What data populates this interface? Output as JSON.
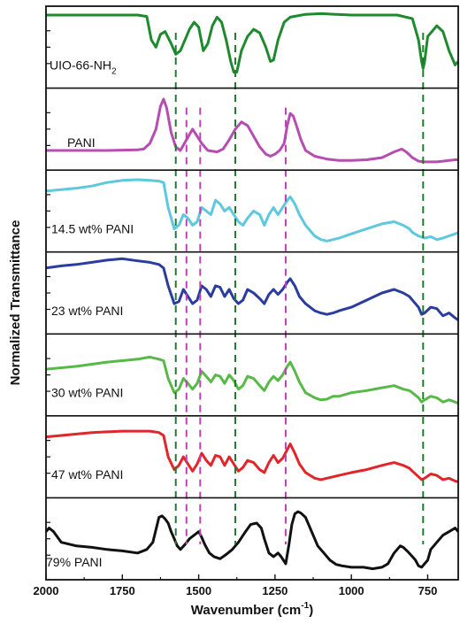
{
  "chart_data": {
    "type": "line",
    "xlabel": "Wavenumber (cm",
    "xlabel_sup": "-1",
    "xlabel_close": ")",
    "ylabel": "Normalized Transmittance",
    "xlim": [
      2000,
      650
    ],
    "x_reversed": true,
    "x_ticks": [
      2000,
      1750,
      1500,
      1250,
      1000,
      750
    ],
    "x_tick_labels": [
      "2000",
      "1750",
      "1500",
      "1250",
      "1000",
      "750"
    ],
    "grid": false,
    "reference_lines": [
      {
        "x": 1575,
        "color": "#1e7d2a",
        "style": "dashed"
      },
      {
        "x": 1380,
        "color": "#1e7d2a",
        "style": "dashed"
      },
      {
        "x": 765,
        "color": "#1e7d2a",
        "style": "dashed"
      },
      {
        "x": 1540,
        "color": "#c040b8",
        "style": "dashed"
      },
      {
        "x": 1495,
        "color": "#c040b8",
        "style": "dashed"
      },
      {
        "x": 1215,
        "color": "#c040b8",
        "style": "dashed"
      }
    ],
    "panels": [
      {
        "label": "UIO-66-NH",
        "label_sub": "2",
        "color": "#1e8a2e",
        "x": [
          2000,
          1900,
          1800,
          1700,
          1670,
          1655,
          1640,
          1625,
          1610,
          1590,
          1575,
          1560,
          1545,
          1530,
          1515,
          1500,
          1485,
          1470,
          1455,
          1440,
          1425,
          1410,
          1395,
          1385,
          1375,
          1360,
          1340,
          1320,
          1300,
          1280,
          1265,
          1255,
          1240,
          1220,
          1200,
          1150,
          1100,
          1050,
          1000,
          950,
          900,
          850,
          800,
          780,
          770,
          765,
          760,
          750,
          720,
          700,
          680,
          660,
          650
        ],
        "y": [
          0.95,
          0.95,
          0.95,
          0.95,
          0.93,
          0.6,
          0.5,
          0.68,
          0.72,
          0.55,
          0.4,
          0.45,
          0.6,
          0.75,
          0.85,
          0.78,
          0.45,
          0.55,
          0.8,
          0.92,
          0.85,
          0.6,
          0.3,
          0.15,
          0.15,
          0.45,
          0.65,
          0.75,
          0.7,
          0.5,
          0.3,
          0.32,
          0.6,
          0.85,
          0.92,
          0.96,
          0.97,
          0.96,
          0.95,
          0.95,
          0.95,
          0.95,
          0.9,
          0.6,
          0.3,
          0.2,
          0.3,
          0.65,
          0.8,
          0.72,
          0.45,
          0.25,
          0.3
        ]
      },
      {
        "label": "PANI",
        "color": "#b64db0",
        "x": [
          2000,
          1900,
          1800,
          1700,
          1680,
          1660,
          1640,
          1625,
          1615,
          1605,
          1590,
          1575,
          1560,
          1540,
          1520,
          1505,
          1490,
          1470,
          1440,
          1420,
          1400,
          1380,
          1360,
          1340,
          1320,
          1300,
          1280,
          1265,
          1250,
          1235,
          1220,
          1210,
          1200,
          1190,
          1180,
          1165,
          1150,
          1120,
          1080,
          1040,
          1000,
          950,
          900,
          860,
          835,
          820,
          800,
          780,
          760,
          740,
          720,
          700,
          680,
          660,
          650
        ],
        "y": [
          0.2,
          0.2,
          0.2,
          0.21,
          0.22,
          0.3,
          0.5,
          0.82,
          0.92,
          0.8,
          0.45,
          0.25,
          0.2,
          0.35,
          0.5,
          0.4,
          0.3,
          0.2,
          0.18,
          0.22,
          0.35,
          0.5,
          0.6,
          0.55,
          0.4,
          0.25,
          0.15,
          0.12,
          0.15,
          0.2,
          0.3,
          0.55,
          0.72,
          0.68,
          0.55,
          0.35,
          0.2,
          0.12,
          0.08,
          0.06,
          0.06,
          0.07,
          0.1,
          0.18,
          0.22,
          0.18,
          0.1,
          0.05,
          0.04,
          0.04,
          0.04,
          0.05,
          0.06,
          0.07,
          0.07
        ]
      },
      {
        "label": "14.5 wt% PANI",
        "color": "#5ec8dc",
        "x": [
          2000,
          1950,
          1900,
          1850,
          1800,
          1750,
          1700,
          1660,
          1630,
          1615,
          1600,
          1580,
          1565,
          1550,
          1535,
          1520,
          1505,
          1490,
          1475,
          1460,
          1445,
          1430,
          1415,
          1400,
          1385,
          1370,
          1355,
          1340,
          1320,
          1300,
          1285,
          1270,
          1255,
          1240,
          1225,
          1210,
          1200,
          1185,
          1170,
          1150,
          1120,
          1100,
          1080,
          1060,
          1040,
          1000,
          950,
          900,
          860,
          830,
          810,
          800,
          780,
          760,
          740,
          720,
          700,
          680,
          660,
          650
        ],
        "y": [
          0.78,
          0.8,
          0.82,
          0.85,
          0.9,
          0.93,
          0.94,
          0.93,
          0.92,
          0.9,
          0.55,
          0.25,
          0.3,
          0.45,
          0.4,
          0.3,
          0.35,
          0.55,
          0.5,
          0.45,
          0.65,
          0.6,
          0.5,
          0.55,
          0.45,
          0.35,
          0.3,
          0.4,
          0.5,
          0.45,
          0.3,
          0.45,
          0.55,
          0.45,
          0.55,
          0.65,
          0.7,
          0.6,
          0.45,
          0.3,
          0.15,
          0.1,
          0.08,
          0.1,
          0.12,
          0.18,
          0.25,
          0.32,
          0.35,
          0.3,
          0.25,
          0.2,
          0.15,
          0.12,
          0.14,
          0.1,
          0.12,
          0.15,
          0.18,
          0.2
        ]
      },
      {
        "label": "23 wt% PANI",
        "color": "#2b3c9f",
        "x": [
          2000,
          1950,
          1900,
          1850,
          1800,
          1750,
          1700,
          1660,
          1630,
          1615,
          1600,
          1580,
          1565,
          1550,
          1535,
          1520,
          1505,
          1490,
          1475,
          1460,
          1445,
          1430,
          1415,
          1400,
          1385,
          1370,
          1355,
          1340,
          1320,
          1300,
          1285,
          1270,
          1255,
          1240,
          1225,
          1210,
          1200,
          1185,
          1170,
          1150,
          1120,
          1100,
          1080,
          1060,
          1040,
          1000,
          950,
          900,
          860,
          830,
          810,
          800,
          780,
          770,
          760,
          740,
          720,
          700,
          680,
          660,
          650
        ],
        "y": [
          0.85,
          0.88,
          0.9,
          0.93,
          0.96,
          0.98,
          0.95,
          0.93,
          0.9,
          0.85,
          0.6,
          0.35,
          0.38,
          0.55,
          0.45,
          0.35,
          0.4,
          0.6,
          0.55,
          0.45,
          0.6,
          0.58,
          0.45,
          0.55,
          0.42,
          0.35,
          0.4,
          0.55,
          0.5,
          0.42,
          0.35,
          0.48,
          0.55,
          0.48,
          0.55,
          0.65,
          0.7,
          0.6,
          0.45,
          0.35,
          0.25,
          0.22,
          0.2,
          0.22,
          0.25,
          0.3,
          0.4,
          0.5,
          0.55,
          0.5,
          0.45,
          0.4,
          0.3,
          0.2,
          0.22,
          0.3,
          0.28,
          0.18,
          0.22,
          0.15,
          0.12
        ]
      },
      {
        "label": "30 wt% PANI",
        "color": "#58b848",
        "x": [
          2000,
          1950,
          1900,
          1850,
          1800,
          1750,
          1700,
          1660,
          1630,
          1615,
          1600,
          1580,
          1565,
          1550,
          1535,
          1520,
          1505,
          1490,
          1475,
          1460,
          1445,
          1430,
          1415,
          1400,
          1385,
          1370,
          1355,
          1340,
          1320,
          1300,
          1285,
          1270,
          1255,
          1240,
          1225,
          1210,
          1200,
          1185,
          1170,
          1150,
          1120,
          1100,
          1080,
          1060,
          1040,
          1000,
          950,
          900,
          860,
          830,
          810,
          800,
          780,
          770,
          760,
          740,
          720,
          700,
          680,
          660,
          650
        ],
        "y": [
          0.58,
          0.6,
          0.62,
          0.65,
          0.68,
          0.7,
          0.72,
          0.75,
          0.72,
          0.7,
          0.45,
          0.25,
          0.3,
          0.45,
          0.38,
          0.3,
          0.38,
          0.55,
          0.48,
          0.4,
          0.5,
          0.48,
          0.38,
          0.5,
          0.42,
          0.3,
          0.35,
          0.48,
          0.45,
          0.35,
          0.28,
          0.4,
          0.48,
          0.42,
          0.5,
          0.62,
          0.68,
          0.55,
          0.4,
          0.25,
          0.18,
          0.15,
          0.16,
          0.2,
          0.2,
          0.25,
          0.28,
          0.32,
          0.35,
          0.3,
          0.28,
          0.25,
          0.18,
          0.12,
          0.15,
          0.2,
          0.18,
          0.12,
          0.15,
          0.12,
          0.1
        ]
      },
      {
        "label": "47 wt% PANI",
        "color": "#e0262a",
        "x": [
          2000,
          1950,
          1900,
          1850,
          1800,
          1750,
          1700,
          1660,
          1630,
          1615,
          1600,
          1580,
          1565,
          1550,
          1535,
          1520,
          1505,
          1490,
          1475,
          1460,
          1445,
          1430,
          1415,
          1400,
          1385,
          1370,
          1355,
          1340,
          1320,
          1300,
          1285,
          1270,
          1255,
          1240,
          1225,
          1210,
          1200,
          1185,
          1170,
          1150,
          1120,
          1100,
          1080,
          1060,
          1040,
          1000,
          950,
          900,
          860,
          830,
          810,
          800,
          780,
          770,
          760,
          740,
          720,
          700,
          680,
          660,
          650
        ],
        "y": [
          0.78,
          0.8,
          0.82,
          0.84,
          0.85,
          0.86,
          0.86,
          0.86,
          0.84,
          0.8,
          0.5,
          0.32,
          0.38,
          0.5,
          0.4,
          0.3,
          0.4,
          0.55,
          0.45,
          0.38,
          0.52,
          0.5,
          0.38,
          0.5,
          0.4,
          0.3,
          0.35,
          0.45,
          0.42,
          0.32,
          0.28,
          0.42,
          0.52,
          0.42,
          0.48,
          0.6,
          0.68,
          0.55,
          0.4,
          0.28,
          0.2,
          0.18,
          0.2,
          0.22,
          0.24,
          0.28,
          0.32,
          0.38,
          0.42,
          0.38,
          0.34,
          0.3,
          0.22,
          0.18,
          0.2,
          0.26,
          0.24,
          0.18,
          0.2,
          0.16,
          0.15
        ]
      },
      {
        "label": "79% PANI",
        "color": "#111111",
        "x": [
          2000,
          1990,
          1975,
          1950,
          1900,
          1850,
          1800,
          1750,
          1700,
          1670,
          1650,
          1630,
          1620,
          1610,
          1600,
          1590,
          1580,
          1570,
          1560,
          1545,
          1530,
          1515,
          1500,
          1490,
          1480,
          1465,
          1450,
          1430,
          1410,
          1390,
          1370,
          1350,
          1330,
          1310,
          1295,
          1285,
          1270,
          1255,
          1240,
          1230,
          1215,
          1205,
          1195,
          1185,
          1175,
          1165,
          1150,
          1130,
          1110,
          1090,
          1070,
          1050,
          1030,
          1000,
          960,
          930,
          900,
          880,
          860,
          840,
          830,
          815,
          800,
          790,
          780,
          770,
          760,
          750,
          740,
          720,
          700,
          680,
          660,
          650
        ],
        "y": [
          0.6,
          0.65,
          0.6,
          0.45,
          0.4,
          0.38,
          0.35,
          0.33,
          0.3,
          0.35,
          0.45,
          0.8,
          0.82,
          0.78,
          0.72,
          0.6,
          0.5,
          0.4,
          0.35,
          0.42,
          0.5,
          0.55,
          0.6,
          0.52,
          0.42,
          0.3,
          0.25,
          0.22,
          0.28,
          0.35,
          0.45,
          0.58,
          0.7,
          0.72,
          0.65,
          0.5,
          0.3,
          0.25,
          0.3,
          0.25,
          0.15,
          0.4,
          0.7,
          0.85,
          0.88,
          0.86,
          0.8,
          0.6,
          0.4,
          0.3,
          0.2,
          0.14,
          0.12,
          0.1,
          0.1,
          0.08,
          0.1,
          0.15,
          0.3,
          0.4,
          0.38,
          0.32,
          0.25,
          0.2,
          0.12,
          0.1,
          0.15,
          0.2,
          0.35,
          0.45,
          0.55,
          0.6,
          0.65,
          0.6
        ]
      }
    ]
  }
}
